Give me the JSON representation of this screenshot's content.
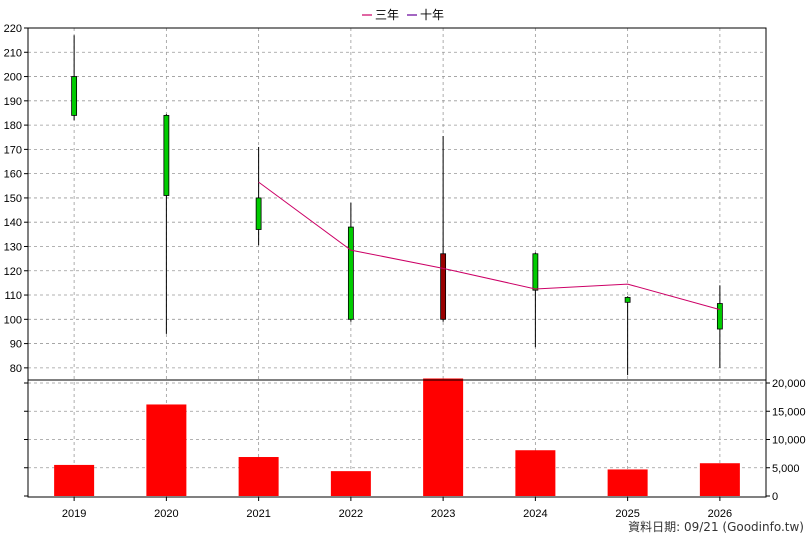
{
  "legend": {
    "items": [
      {
        "label": "三年",
        "color": "#cc0066"
      },
      {
        "label": "十年",
        "color": "#660099"
      }
    ]
  },
  "footer": {
    "source_text": "資料日期: 09/21  (Goodinfo.tw)"
  },
  "colors": {
    "up": "#00cc00",
    "down": "#990000",
    "volume": "#ff0000",
    "ma3": "#cc0066",
    "grid": "#999999"
  },
  "chart_data": {
    "type": "candlestick",
    "categories": [
      "2019",
      "2020",
      "2021",
      "2022",
      "2023",
      "2024",
      "2025",
      "2026"
    ],
    "price_axis": {
      "ylim": [
        75,
        220
      ],
      "ticks": [
        80,
        90,
        100,
        110,
        120,
        130,
        140,
        150,
        160,
        170,
        180,
        190,
        200,
        210,
        220
      ]
    },
    "candles": [
      {
        "x": "2019",
        "open": 184,
        "high": 217,
        "low": 182,
        "close": 200
      },
      {
        "x": "2020",
        "open": 151,
        "high": 184.5,
        "low": 94,
        "close": 184
      },
      {
        "x": "2021",
        "open": 137,
        "high": 171,
        "low": 130.5,
        "close": 150
      },
      {
        "x": "2022",
        "open": 100,
        "high": 148,
        "low": 99,
        "close": 138
      },
      {
        "x": "2023",
        "open": 127,
        "high": 175.5,
        "low": 99,
        "close": 100
      },
      {
        "x": "2024",
        "open": 112,
        "high": 127.5,
        "low": 88.5,
        "close": 127
      },
      {
        "x": "2025",
        "open": 107,
        "high": 109.5,
        "low": 77,
        "close": 109
      },
      {
        "x": "2026",
        "open": 96,
        "high": 114,
        "low": 80,
        "close": 106.5
      }
    ],
    "series": [
      {
        "name": "三年",
        "values": [
          null,
          null,
          156.5,
          128.5,
          121,
          112.5,
          114.5,
          104
        ]
      }
    ],
    "volume_axis": {
      "ylim": [
        0,
        20000
      ],
      "ticks": [
        0,
        5000,
        10000,
        15000,
        20000
      ],
      "tick_labels": [
        "0",
        "5,000",
        "10,000",
        "15,000",
        "20,000"
      ]
    },
    "volume": [
      5500,
      16200,
      6900,
      4400,
      20800,
      8100,
      4700,
      5800
    ]
  }
}
